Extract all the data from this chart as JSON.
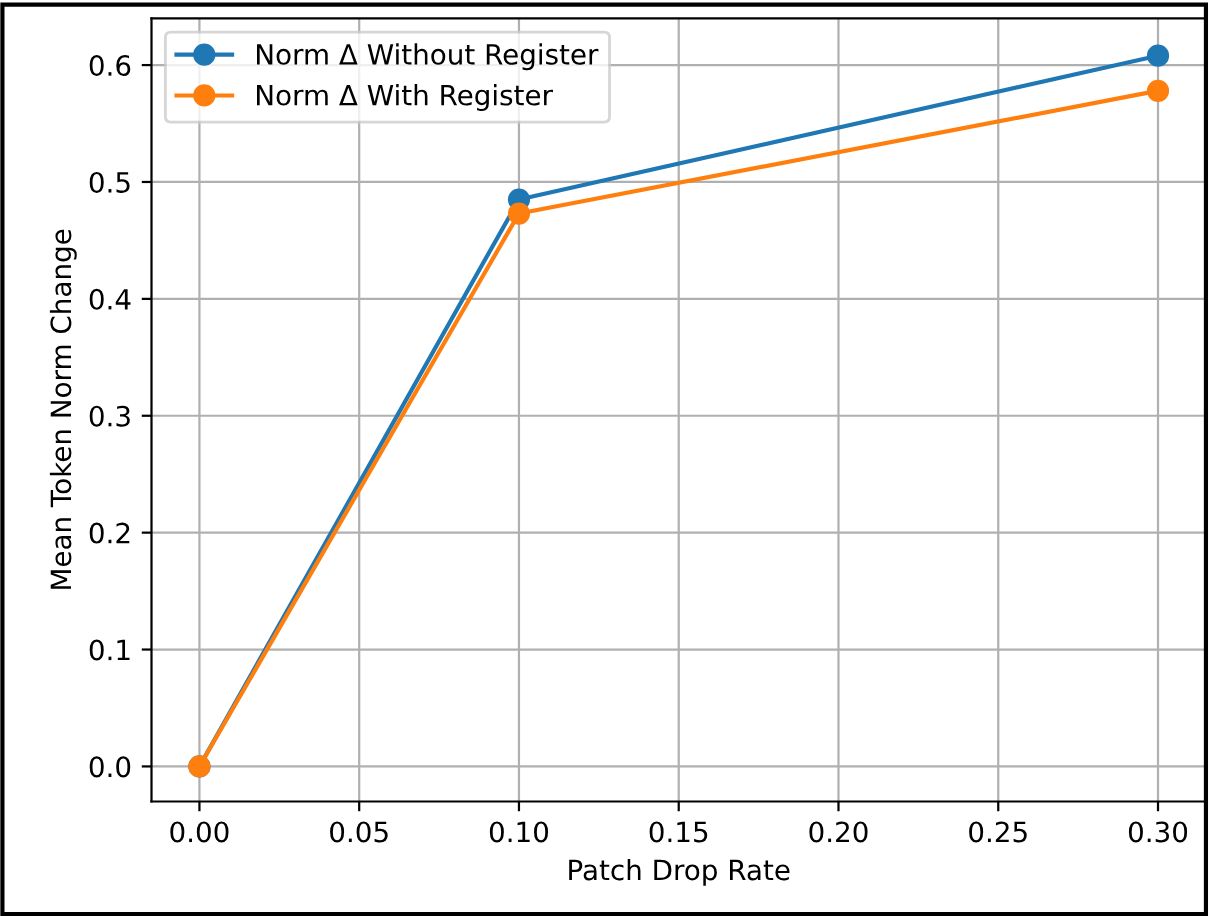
{
  "chart_data": {
    "type": "line",
    "xlabel": "Patch Drop Rate",
    "ylabel": "Mean Token Norm Change",
    "x": [
      0.0,
      0.1,
      0.3
    ],
    "series": [
      {
        "name": "Norm Δ Without Register",
        "color": "#1f77b4",
        "values": [
          0.0,
          0.485,
          0.608
        ]
      },
      {
        "name": "Norm Δ With Register",
        "color": "#ff7f0e",
        "values": [
          0.0,
          0.473,
          0.578
        ]
      }
    ],
    "xlim": [
      -0.015,
      0.315
    ],
    "xticks": [
      {
        "value": 0.0,
        "label": "0.00"
      },
      0.05,
      {
        "value": 0.1,
        "label": "0.10"
      },
      0.15,
      {
        "value": 0.2,
        "label": "0.20"
      },
      0.25,
      {
        "value": 0.3,
        "label": "0.30"
      }
    ],
    "ylim": [
      -0.03,
      0.64
    ],
    "yticks": [
      {
        "value": 0.0,
        "label": "0.0"
      },
      0.1,
      0.2,
      0.3,
      0.4,
      0.5,
      0.6
    ],
    "grid": true,
    "legend": "top left",
    "marker": "circle",
    "line_style": "solid"
  }
}
